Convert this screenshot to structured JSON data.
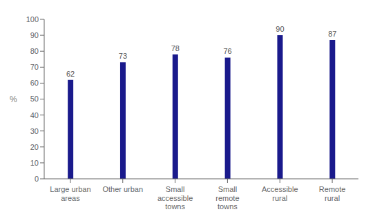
{
  "chart_data": {
    "type": "bar",
    "categories": [
      "Large urban\nareas",
      "Other urban",
      "Small\naccessible\ntowns",
      "Small\nremote\ntowns",
      "Accessible\nrural",
      "Remote\nrural"
    ],
    "values": [
      62,
      73,
      78,
      76,
      90,
      87
    ],
    "color": "#1a1a8c",
    "ylabel": "%",
    "ylim": [
      0,
      100
    ],
    "yticks": [
      0,
      10,
      20,
      30,
      40,
      50,
      60,
      70,
      80,
      90,
      100
    ],
    "grid": false,
    "data_labels": true
  }
}
